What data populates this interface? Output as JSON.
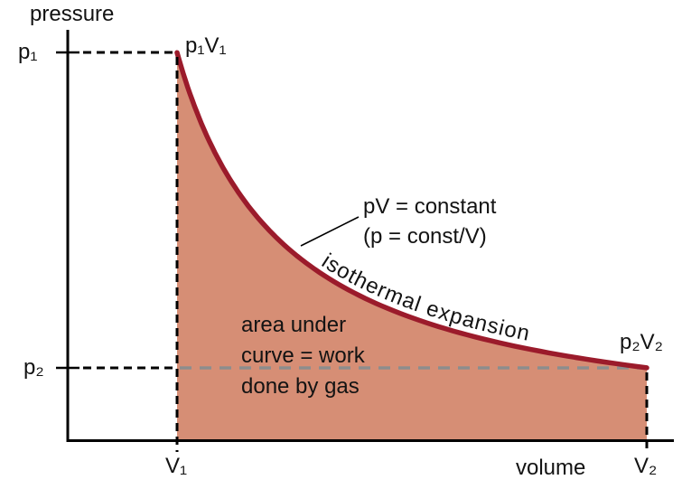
{
  "figure": {
    "y_axis_label": "pressure",
    "x_axis_label": "volume",
    "p1_label": "p₁",
    "p2_label": "p₂",
    "v1_label": "V₁",
    "v2_label": "V₂",
    "point1_label": "p₁V₁",
    "point2_label": "p₂V₂",
    "equation_annotation": "pV = constant\n(p = const/V)",
    "curve_annotation": "isothermal expansion",
    "area_annotation": "area under\ncurve = work\ndone by gas",
    "colors": {
      "curve": "#9b1b2b",
      "area_fill": "#d68e75",
      "gray_dash": "#8d8d8d",
      "axis": "#000000",
      "text": "#131313"
    }
  },
  "chart_data": {
    "type": "area",
    "title": "",
    "equation": "pV = constant (p = const/V)",
    "xlabel": "volume",
    "ylabel": "pressure",
    "x_range": [
      0,
      6.7
    ],
    "y_range": [
      0,
      4.55
    ],
    "grid": false,
    "legend": false,
    "constant_pV": 5.2,
    "V1": 1.21,
    "p1": 4.3,
    "V2": 6.41,
    "p2": 0.81,
    "points": [
      {
        "V": 1.21,
        "p": 4.3
      },
      {
        "V": 1.5,
        "p": 3.47
      },
      {
        "V": 2.0,
        "p": 2.6
      },
      {
        "V": 2.5,
        "p": 2.08
      },
      {
        "V": 3.0,
        "p": 1.73
      },
      {
        "V": 3.5,
        "p": 1.49
      },
      {
        "V": 4.0,
        "p": 1.3
      },
      {
        "V": 4.5,
        "p": 1.16
      },
      {
        "V": 5.0,
        "p": 1.04
      },
      {
        "V": 5.5,
        "p": 0.95
      },
      {
        "V": 6.0,
        "p": 0.87
      },
      {
        "V": 6.41,
        "p": 0.81
      }
    ],
    "annotations": [
      "p₁V₁",
      "p₂V₂",
      "pV = constant (p = const/V)",
      "isothermal expansion",
      "area under curve = work done by gas"
    ]
  }
}
